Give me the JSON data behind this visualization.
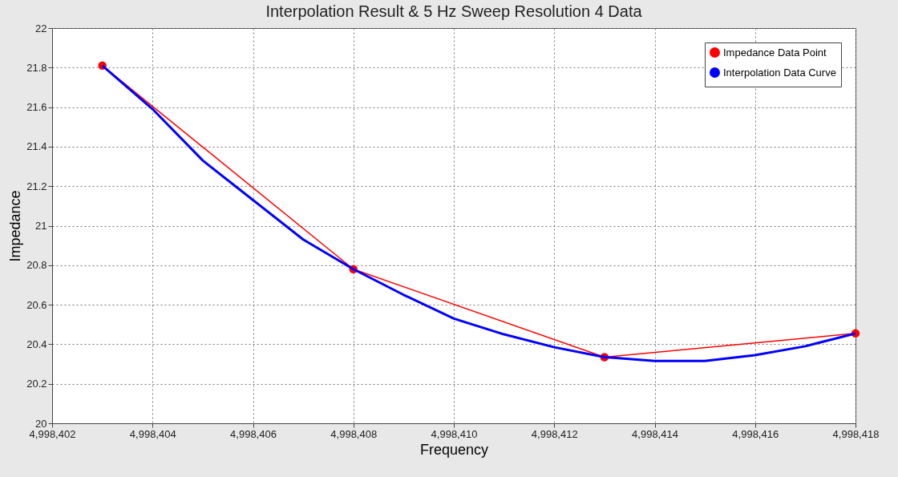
{
  "chart_data": {
    "type": "line",
    "title": "Interpolation Result & 5 Hz Sweep Resolution 4 Data",
    "xlabel": "Frequency",
    "ylabel": "Impedance",
    "xlim": [
      4998402,
      4998418
    ],
    "xticks": [
      {
        "value": 4998402,
        "label": "4,998,402"
      },
      {
        "value": 4998404,
        "label": "4,998,404"
      },
      {
        "value": 4998406,
        "label": "4,998,406"
      },
      {
        "value": 4998408,
        "label": "4,998,408"
      },
      {
        "value": 4998410,
        "label": "4,998,410"
      },
      {
        "value": 4998412,
        "label": "4,998,412"
      },
      {
        "value": 4998414,
        "label": "4,998,414"
      },
      {
        "value": 4998416,
        "label": "4,998,416"
      },
      {
        "value": 4998418,
        "label": "4,998,418"
      }
    ],
    "ylim": [
      20,
      22
    ],
    "yticks": [
      20,
      20.2,
      20.4,
      20.6,
      20.8,
      21,
      21.2,
      21.4,
      21.6,
      21.8,
      22
    ],
    "grid": true,
    "legend": "top right",
    "series": [
      {
        "name": "Impedance Data Point",
        "color": "#ff0000",
        "marker": "circle",
        "x": [
          4998403,
          4998408,
          4998413,
          4998418
        ],
        "values": [
          21.81,
          20.78,
          20.335,
          20.455
        ]
      },
      {
        "name": "Interpolation Data Curve",
        "color": "#0000ff",
        "marker": "none",
        "x": [
          4998403,
          4998404,
          4998405,
          4998406,
          4998407,
          4998408,
          4998409,
          4998410,
          4998411,
          4998412,
          4998413,
          4998414,
          4998415,
          4998416,
          4998417,
          4998418
        ],
        "values": [
          21.81,
          21.59,
          21.33,
          21.13,
          20.93,
          20.78,
          20.65,
          20.53,
          20.45,
          20.385,
          20.335,
          20.315,
          20.315,
          20.345,
          20.39,
          20.455
        ]
      }
    ]
  }
}
